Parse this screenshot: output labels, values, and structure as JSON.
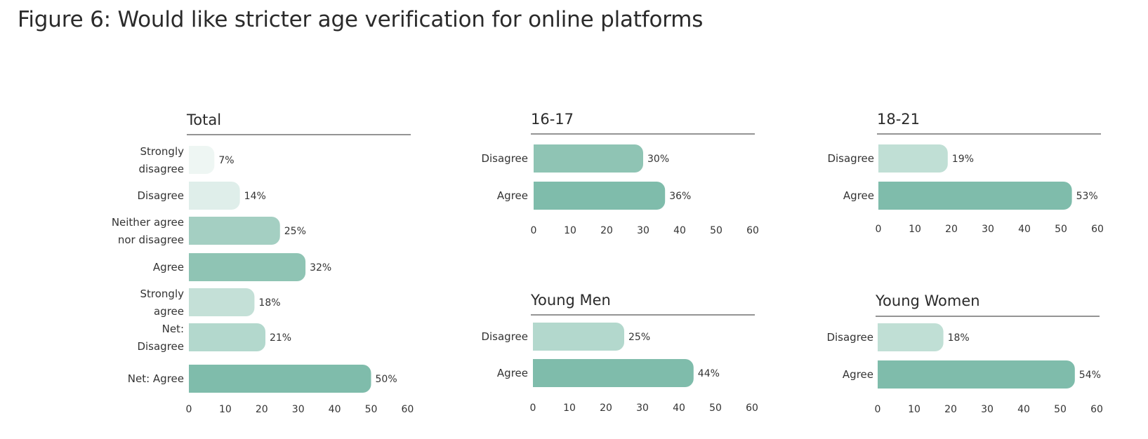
{
  "page": {
    "title": "Figure 6: Would like stricter age verification for online platforms"
  },
  "colors": {
    "strongly_disagree": "#eef6f3",
    "disagree_light": "#dfeeea",
    "neither": "#a4cfc2",
    "agree": "#8fc4b4",
    "strongly_agree": "#c4e0d7",
    "net_disagree": "#b3d8cd",
    "net_agree": "#7fbcab",
    "axis_rule": "#555555"
  },
  "chart_data": [
    {
      "type": "bar",
      "orientation": "horizontal",
      "title": "Total",
      "categories": [
        [
          "Strongly",
          "disagree"
        ],
        [
          "Disagree"
        ],
        [
          "Neither agree",
          "nor disagree"
        ],
        [
          "Agree"
        ],
        [
          "Strongly",
          "agree"
        ],
        [
          "Net:",
          "Disagree"
        ],
        [
          "Net: Agree"
        ]
      ],
      "values": [
        7,
        14,
        25,
        32,
        18,
        21,
        50
      ],
      "value_labels": [
        "7%",
        "14%",
        "25%",
        "32%",
        "18%",
        "21%",
        "50%"
      ],
      "bar_colors": [
        "#eef6f3",
        "#dfeeea",
        "#a4cfc2",
        "#8fc4b4",
        "#c4e0d7",
        "#b3d8cd",
        "#7fbcab"
      ],
      "xlim": [
        0,
        60
      ],
      "ticks": [
        0,
        10,
        20,
        30,
        40,
        50,
        60
      ],
      "tick_labels": [
        "0",
        "10",
        "20",
        "30",
        "40",
        "50",
        "60"
      ]
    },
    {
      "type": "bar",
      "orientation": "horizontal",
      "title": "16-17",
      "categories": [
        [
          "Disagree"
        ],
        [
          "Agree"
        ]
      ],
      "values": [
        30,
        36
      ],
      "value_labels": [
        "30%",
        "36%"
      ],
      "bar_colors": [
        "#8fc4b4",
        "#7fbcab"
      ],
      "xlim": [
        0,
        60
      ],
      "ticks": [
        0,
        10,
        20,
        30,
        40,
        50,
        60
      ],
      "tick_labels": [
        "0",
        "10",
        "20",
        "30",
        "40",
        "50",
        "60"
      ]
    },
    {
      "type": "bar",
      "orientation": "horizontal",
      "title": "18-21",
      "categories": [
        [
          "Disagree"
        ],
        [
          "Agree"
        ]
      ],
      "values": [
        19,
        53
      ],
      "value_labels": [
        "19%",
        "53%"
      ],
      "bar_colors": [
        "#c0dfd5",
        "#7fbcab"
      ],
      "xlim": [
        0,
        60
      ],
      "ticks": [
        0,
        10,
        20,
        30,
        40,
        50,
        60
      ],
      "tick_labels": [
        "0",
        "10",
        "20",
        "30",
        "40",
        "50",
        "60"
      ]
    },
    {
      "type": "bar",
      "orientation": "horizontal",
      "title": "Young Men",
      "categories": [
        [
          "Disagree"
        ],
        [
          "Agree"
        ]
      ],
      "values": [
        25,
        44
      ],
      "value_labels": [
        "25%",
        "44%"
      ],
      "bar_colors": [
        "#b3d8cd",
        "#7fbcab"
      ],
      "xlim": [
        0,
        60
      ],
      "ticks": [
        0,
        10,
        20,
        30,
        40,
        50,
        60
      ],
      "tick_labels": [
        "0",
        "10",
        "20",
        "30",
        "40",
        "50",
        "60"
      ]
    },
    {
      "type": "bar",
      "orientation": "horizontal",
      "title": "Young Women",
      "categories": [
        [
          "Disagree"
        ],
        [
          "Agree"
        ]
      ],
      "values": [
        18,
        54
      ],
      "value_labels": [
        "18%",
        "54%"
      ],
      "bar_colors": [
        "#c0dfd5",
        "#7fbcab"
      ],
      "xlim": [
        0,
        60
      ],
      "ticks": [
        0,
        10,
        20,
        30,
        40,
        50,
        60
      ],
      "tick_labels": [
        "0",
        "10",
        "20",
        "30",
        "40",
        "50",
        "60"
      ]
    }
  ]
}
